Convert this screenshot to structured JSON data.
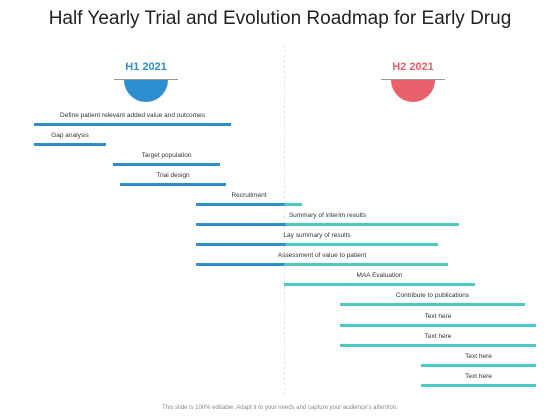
{
  "title": "Half Yearly Trial and Evolution Roadmap for Early Drug",
  "periods": [
    {
      "label": "H1 2021",
      "color": "#2e8fd0"
    },
    {
      "label": "H2 2021",
      "color": "#e8606a"
    }
  ],
  "bar_colors": {
    "blue": "#2e8fd0",
    "teal": "#4ec9c2"
  },
  "tasks": [
    {
      "label": "Define patient relevant added value and outcomes"
    },
    {
      "label": "Gap analysis"
    },
    {
      "label": "Target population"
    },
    {
      "label": "Trial design"
    },
    {
      "label": "Recruitment"
    },
    {
      "label": "Summary of interim results"
    },
    {
      "label": "Lay summary of results"
    },
    {
      "label": "Assessment of value to patient"
    },
    {
      "label": "MAA Evaluation"
    },
    {
      "label": "Contribute to publications"
    },
    {
      "label": "Text here"
    },
    {
      "label": "Text here"
    },
    {
      "label": "Text here"
    },
    {
      "label": "Text here"
    }
  ],
  "footer": "This slide is 100% editable. Adapt it to your needs and capture your audience's attention."
}
